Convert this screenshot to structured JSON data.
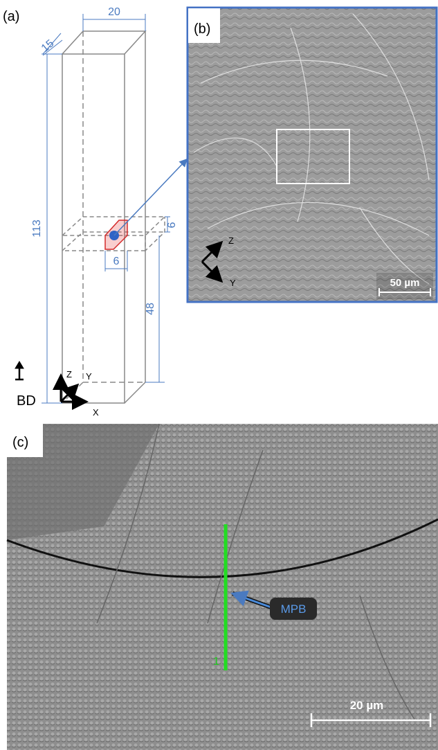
{
  "panel_a": {
    "label": "(a)",
    "dimensions": {
      "width": "20",
      "depth": "15",
      "height": "113",
      "section_height": "6",
      "section_width": "6",
      "lower_height": "48"
    },
    "axes": {
      "z": "Z",
      "y": "Y",
      "x": "X"
    },
    "build_direction": "BD"
  },
  "panel_b": {
    "label": "(b)",
    "axes": {
      "z": "Z",
      "y": "Y"
    },
    "scale_bar": "50 µm"
  },
  "panel_c": {
    "label": "(c)",
    "line_label": "1",
    "annotation": "MPB",
    "scale_bar": "20 µm"
  }
}
